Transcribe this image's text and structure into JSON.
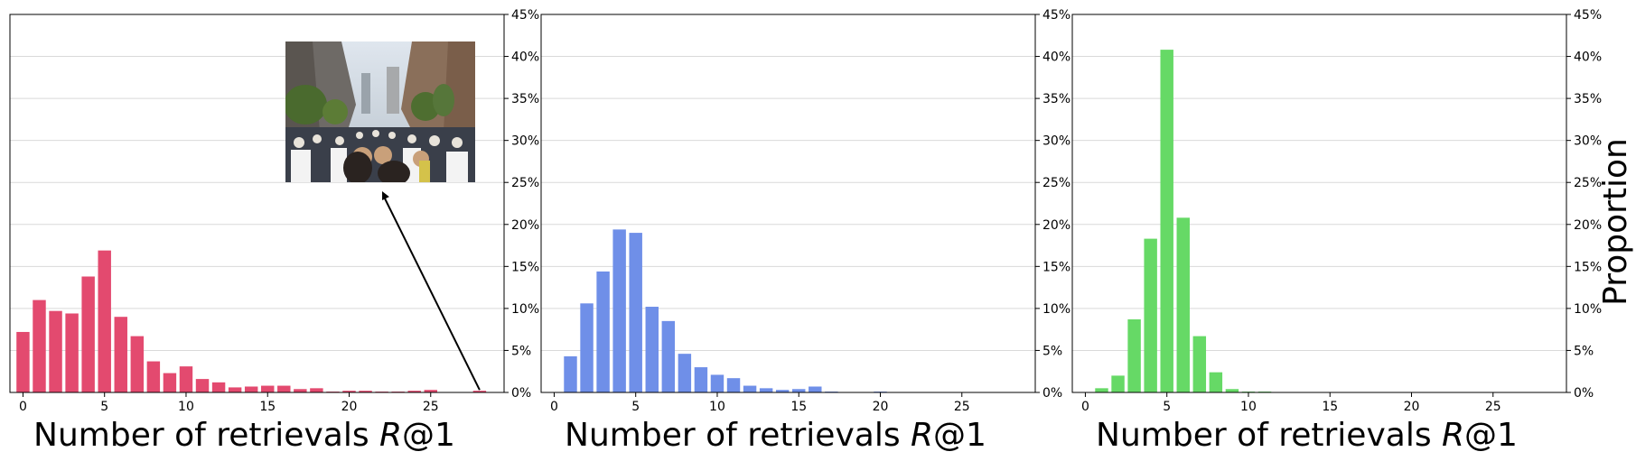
{
  "figure": {
    "shared_ylabel": "Proportion",
    "inset": {
      "description_icon": "crowd-street-photo",
      "points_to_x": 28
    }
  },
  "chart_data": [
    {
      "type": "bar",
      "xlabel": "Number of retrievals R@1",
      "xlabel_prefix": "Number of retrievals ",
      "xlabel_italic": "R",
      "xlabel_suffix": "@1",
      "color": "#e34a6f",
      "xlim": [
        -0.8,
        29.5
      ],
      "ylim": [
        0,
        45
      ],
      "xticks": [
        0,
        5,
        10,
        15,
        20,
        25
      ],
      "yticks": [
        "0%",
        "5%",
        "10%",
        "15%",
        "20%",
        "25%",
        "30%",
        "35%",
        "40%",
        "45%"
      ],
      "ytick_values": [
        0,
        5,
        10,
        15,
        20,
        25,
        30,
        35,
        40,
        45
      ],
      "grid": "y",
      "yaxis_side": "right",
      "x": [
        0,
        1,
        2,
        3,
        4,
        5,
        6,
        7,
        8,
        9,
        10,
        11,
        12,
        13,
        14,
        15,
        16,
        17,
        18,
        19,
        20,
        21,
        22,
        23,
        24,
        25,
        26,
        27,
        28
      ],
      "values": [
        7.2,
        11.0,
        9.7,
        9.4,
        13.8,
        16.9,
        9.0,
        6.7,
        3.7,
        2.3,
        3.1,
        1.6,
        1.2,
        0.6,
        0.7,
        0.8,
        0.8,
        0.4,
        0.5,
        0.1,
        0.2,
        0.2,
        0.1,
        0.1,
        0.2,
        0.3,
        0,
        0,
        0.2
      ]
    },
    {
      "type": "bar",
      "xlabel": "Number of retrievals R@1",
      "xlabel_prefix": "Number of retrievals ",
      "xlabel_italic": "R",
      "xlabel_suffix": "@1",
      "color": "#6f8fe8",
      "xlim": [
        -0.8,
        29.5
      ],
      "ylim": [
        0,
        45
      ],
      "xticks": [
        0,
        5,
        10,
        15,
        20,
        25
      ],
      "yticks": [
        "0%",
        "5%",
        "10%",
        "15%",
        "20%",
        "25%",
        "30%",
        "35%",
        "40%",
        "45%"
      ],
      "ytick_values": [
        0,
        5,
        10,
        15,
        20,
        25,
        30,
        35,
        40,
        45
      ],
      "grid": "y",
      "yaxis_side": "right",
      "x": [
        1,
        2,
        3,
        4,
        5,
        6,
        7,
        8,
        9,
        10,
        11,
        12,
        13,
        14,
        15,
        16,
        17,
        20
      ],
      "values": [
        4.3,
        10.6,
        14.4,
        19.4,
        19.0,
        10.2,
        8.5,
        4.6,
        3.0,
        2.1,
        1.7,
        0.8,
        0.5,
        0.3,
        0.4,
        0.7,
        0.1,
        0.1
      ]
    },
    {
      "type": "bar",
      "xlabel": "Number of retrievals R@1",
      "xlabel_prefix": "Number of retrievals ",
      "xlabel_italic": "R",
      "xlabel_suffix": "@1",
      "color": "#66d966",
      "xlim": [
        -0.8,
        29.5
      ],
      "ylim": [
        0,
        45
      ],
      "xticks": [
        0,
        5,
        10,
        15,
        20,
        25
      ],
      "yticks": [
        "0%",
        "5%",
        "10%",
        "15%",
        "20%",
        "25%",
        "30%",
        "35%",
        "40%",
        "45%"
      ],
      "ytick_values": [
        0,
        5,
        10,
        15,
        20,
        25,
        30,
        35,
        40,
        45
      ],
      "grid": "y",
      "yaxis_side": "right",
      "x": [
        1,
        2,
        3,
        4,
        5,
        6,
        7,
        8,
        9,
        10,
        11
      ],
      "values": [
        0.5,
        2.0,
        8.7,
        18.3,
        40.8,
        20.8,
        6.7,
        2.4,
        0.4,
        0.1,
        0.1
      ]
    }
  ]
}
